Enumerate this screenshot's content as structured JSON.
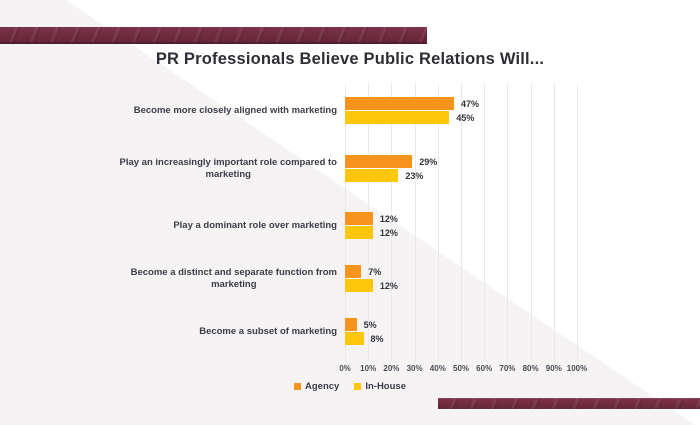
{
  "chart_data": {
    "type": "bar",
    "orientation": "horizontal",
    "title": "PR Professionals Believe Public Relations Will...",
    "categories": [
      {
        "label": "Become more closely aligned with marketing",
        "lines": [
          "Become more closely aligned with marketing"
        ]
      },
      {
        "label": "Play an increasingly important role compared to marketing",
        "lines": [
          "Play an increasingly important role compared to",
          "marketing"
        ]
      },
      {
        "label": "Play a dominant role over marketing",
        "lines": [
          "Play a dominant role over marketing"
        ]
      },
      {
        "label": "Become a distinct and separate function from marketing",
        "lines": [
          "Become a distinct and separate function from",
          "marketing"
        ]
      },
      {
        "label": "Become a subset of marketing",
        "lines": [
          "Become a subset of marketing"
        ]
      }
    ],
    "series": [
      {
        "name": "Agency",
        "color": "#F7941E",
        "values": [
          47,
          29,
          12,
          7,
          5
        ]
      },
      {
        "name": "In-House",
        "color": "#FFC60B",
        "values": [
          45,
          23,
          12,
          12,
          8
        ]
      }
    ],
    "value_suffix": "%",
    "x_ticks": [
      "0%",
      "10%",
      "20%",
      "30%",
      "40%",
      "50%",
      "60%",
      "70%",
      "80%",
      "90%",
      "100%"
    ],
    "xlim": [
      0,
      100
    ],
    "grid": true,
    "legend_position": "bottom"
  },
  "decor": {
    "accent_color": "#702C40",
    "background_triangle_color": "#F5F3F3"
  }
}
